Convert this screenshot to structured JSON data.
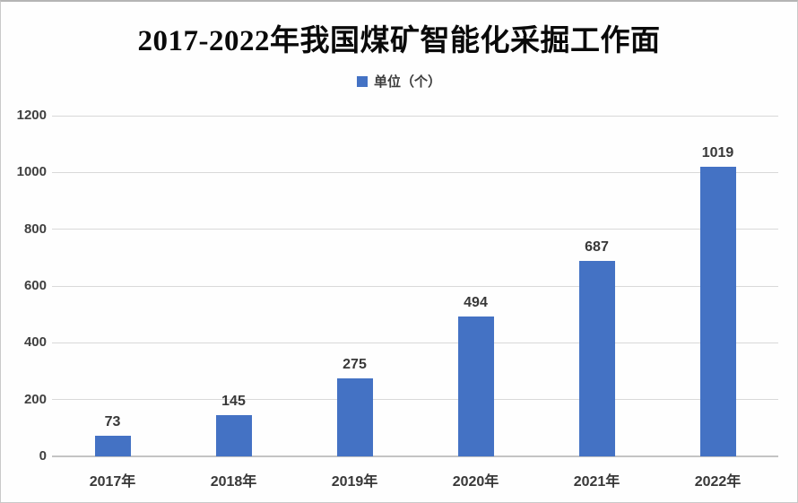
{
  "chart_data": {
    "type": "bar",
    "title": "2017-2022年我国煤矿智能化采掘工作面",
    "legend_label": "单位（个）",
    "legend_position": "top",
    "categories": [
      "2017年",
      "2018年",
      "2019年",
      "2020年",
      "2021年",
      "2022年"
    ],
    "values": [
      73,
      145,
      275,
      494,
      687,
      1019
    ],
    "ylim": [
      0,
      1200
    ],
    "yticks": [
      0,
      200,
      400,
      600,
      800,
      1000,
      1200
    ],
    "grid": true,
    "data_labels": true,
    "colors": {
      "bar": "#4472C4",
      "gridline": "#d9d9d9",
      "axis_line": "#c4c4c4",
      "title_text": "#0a0a0a",
      "label_text": "#383838"
    }
  }
}
